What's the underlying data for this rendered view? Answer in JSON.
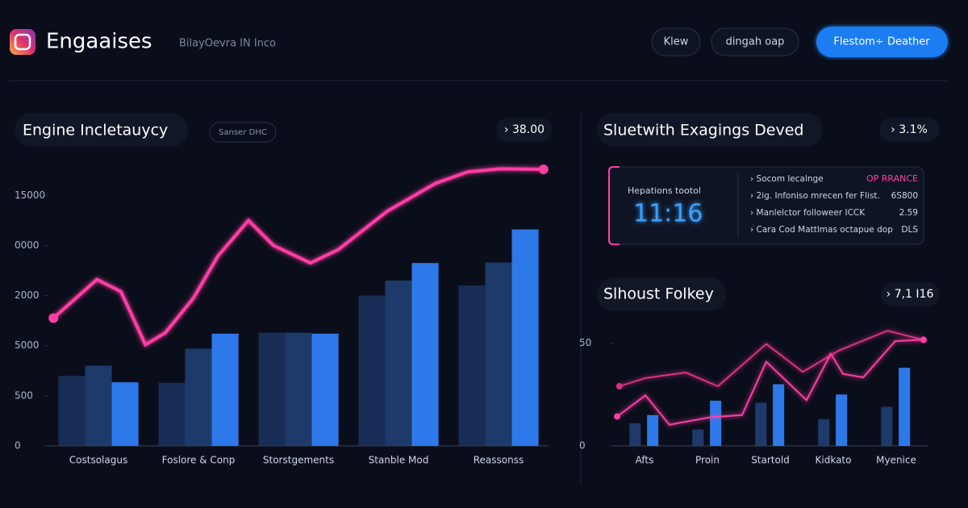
{
  "header": {
    "title": "Engaaises",
    "subtitle": "BilayOevra IN Inco",
    "buttons": [
      "Klew",
      "dingah oap",
      "Flestom∻ Deather"
    ]
  },
  "main_panel": {
    "title": "Engine Incletauycy",
    "badge": "Sanser DHC",
    "stat": "› 38.00",
    "chart_data": {
      "type": "bar-line",
      "categories": [
        "Costsolagus",
        "Foslore & Conp",
        "Storstgements",
        "Stanble Mod",
        "Reassonss"
      ],
      "ylim": [
        0,
        5.6
      ],
      "yticks": [
        0,
        {
          "value": 1,
          "label": "500"
        },
        {
          "value": 2,
          "label": "5000"
        },
        {
          "value": 3,
          "label": "2000"
        },
        {
          "value": 4,
          "label": "0000"
        },
        {
          "value": 5,
          "label": "15000"
        }
      ],
      "series": [
        {
          "color": "#1c3462",
          "values": [
            1.4,
            1.26,
            2.26,
            3.0,
            3.2
          ]
        },
        {
          "color": "#22427a",
          "values": [
            1.6,
            1.94,
            2.26,
            3.3,
            3.66
          ]
        },
        {
          "color": "#2f7ff5",
          "values": [
            1.27,
            2.24,
            2.24,
            3.65,
            4.32
          ]
        }
      ],
      "line": {
        "color": "#ff3ea5",
        "xlim": [
          0,
          100
        ],
        "x": [
          1,
          9.7,
          14.5,
          19.4,
          23.4,
          29,
          33.9,
          40,
          45,
          52.4,
          58,
          67.7,
          77.4,
          83.9,
          90.3,
          99
        ],
        "values": [
          2.55,
          3.32,
          3.08,
          2.02,
          2.26,
          2.95,
          3.79,
          4.5,
          4.0,
          3.65,
          3.92,
          4.68,
          5.24,
          5.47,
          5.53,
          5.52
        ]
      }
    }
  },
  "right_panel": {
    "title": "Sluetwith Exagings Deved",
    "stat": "› 3.1%",
    "card": {
      "label": "Hepations tootol",
      "time": "11:16",
      "tag": "OP RRANCE",
      "items": [
        [
          "› Socom lecalnge",
          ""
        ],
        [
          "› 2ig. Infoniso mrecen fer Flist.",
          "6S800"
        ],
        [
          "› Manlelctor followeer ICCK",
          "2.59"
        ],
        [
          "› Cara Cod Mattlmas octapue dop",
          "DLS"
        ]
      ]
    }
  },
  "lower_panel": {
    "title": "Slhoust Folkey",
    "stat": "› 7,1 I16",
    "chart_data": {
      "type": "bar-line",
      "categories": [
        "Afts",
        "Proin",
        "Startold",
        "Kidkato",
        "Myenice"
      ],
      "ylim": [
        0,
        60
      ],
      "yticks": [
        0,
        50
      ],
      "series": [
        {
          "color": "#22427a",
          "values": [
            11,
            8,
            21,
            13,
            19
          ]
        },
        {
          "color": "#2f7ff5",
          "values": [
            15,
            22,
            30,
            25,
            38
          ]
        }
      ],
      "lines": [
        {
          "color": "#d9307f",
          "xlim": [
            0,
            100
          ],
          "x": [
            2,
            10.3,
            23.1,
            33.3,
            48.7,
            60.3,
            71.8,
            87.2,
            98.7
          ],
          "values": [
            29,
            33,
            35.7,
            29,
            49.6,
            36,
            46.4,
            56,
            51.6
          ]
        },
        {
          "color": "#ff3ea5",
          "xlim": [
            0,
            100
          ],
          "x": [
            1.3,
            10.3,
            17.9,
            30.8,
            41,
            48.7,
            61.5,
            69.2,
            73.1,
            79.5,
            89.7,
            98.7
          ],
          "values": [
            14.3,
            24.6,
            10.3,
            13.9,
            15,
            40.9,
            22.2,
            44.8,
            35,
            33.3,
            51,
            51.6
          ]
        }
      ]
    }
  }
}
